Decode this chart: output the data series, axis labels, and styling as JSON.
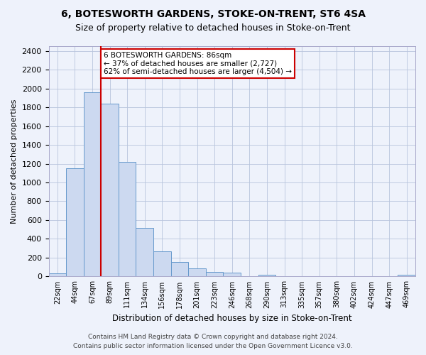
{
  "title1": "6, BOTESWORTH GARDENS, STOKE-ON-TRENT, ST6 4SA",
  "title2": "Size of property relative to detached houses in Stoke-on-Trent",
  "xlabel": "Distribution of detached houses by size in Stoke-on-Trent",
  "ylabel": "Number of detached properties",
  "categories": [
    "22sqm",
    "44sqm",
    "67sqm",
    "89sqm",
    "111sqm",
    "134sqm",
    "156sqm",
    "178sqm",
    "201sqm",
    "223sqm",
    "246sqm",
    "268sqm",
    "290sqm",
    "313sqm",
    "335sqm",
    "357sqm",
    "380sqm",
    "402sqm",
    "424sqm",
    "447sqm",
    "469sqm"
  ],
  "values": [
    30,
    1150,
    1960,
    1840,
    1220,
    520,
    265,
    155,
    85,
    45,
    40,
    0,
    20,
    0,
    0,
    0,
    0,
    0,
    0,
    0,
    20
  ],
  "bar_color": "#ccd9f0",
  "bar_edge_color": "#6699cc",
  "vline_x_index": 3,
  "vline_color": "#cc0000",
  "annotation_title": "6 BOTESWORTH GARDENS: 86sqm",
  "annotation_line1": "← 37% of detached houses are smaller (2,727)",
  "annotation_line2": "62% of semi-detached houses are larger (4,504) →",
  "annotation_box_color": "white",
  "annotation_box_edge": "#cc0000",
  "ylim": [
    0,
    2450
  ],
  "yticks": [
    0,
    200,
    400,
    600,
    800,
    1000,
    1200,
    1400,
    1600,
    1800,
    2000,
    2200,
    2400
  ],
  "footer1": "Contains HM Land Registry data © Crown copyright and database right 2024.",
  "footer2": "Contains public sector information licensed under the Open Government Licence v3.0.",
  "bg_color": "#eef2fb"
}
